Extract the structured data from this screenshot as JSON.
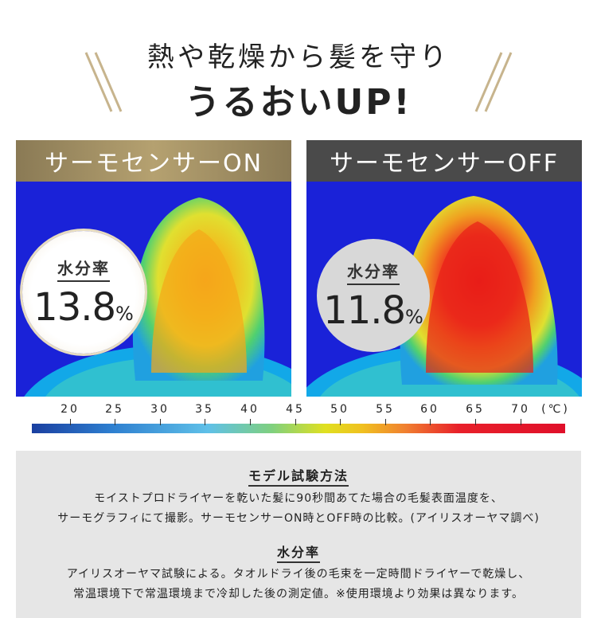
{
  "headline": {
    "line1": "熱や乾燥から髪を守り",
    "line2": "うるおいUP!"
  },
  "panels": [
    {
      "title": "サーモセンサーON",
      "badge_label": "水分率",
      "badge_value": "13.8",
      "badge_unit": "%"
    },
    {
      "title": "サーモセンサーOFF",
      "badge_label": "水分率",
      "badge_value": "11.8",
      "badge_unit": "%"
    }
  ],
  "scale": {
    "ticks": [
      "20",
      "25",
      "30",
      "35",
      "40",
      "45",
      "50",
      "55",
      "60",
      "65",
      "70"
    ],
    "unit": "(℃)"
  },
  "notes": {
    "method_title": "モデル試験方法",
    "method_line1": "モイストプロドライヤーを乾いた髪に90秒間あてた場合の毛髪表面温度を、",
    "method_line2": "サーモグラフィにて撮影。サーモセンサーON時とOFF時の比較。(アイリスオーヤマ調べ)",
    "moisture_title": "水分率",
    "moisture_line1": "アイリスオーヤマ試験による。タオルドライ後の毛束を一定時間ドライヤーで乾燥し、",
    "moisture_line2": "常温環境下で常温環境まで冷却した後の測定値。※使用環境より効果は異なります。"
  },
  "colors": {
    "gold": "#b5a170",
    "dark_gray": "#4a4a4a",
    "thermal_blue": "#1a22d8"
  }
}
